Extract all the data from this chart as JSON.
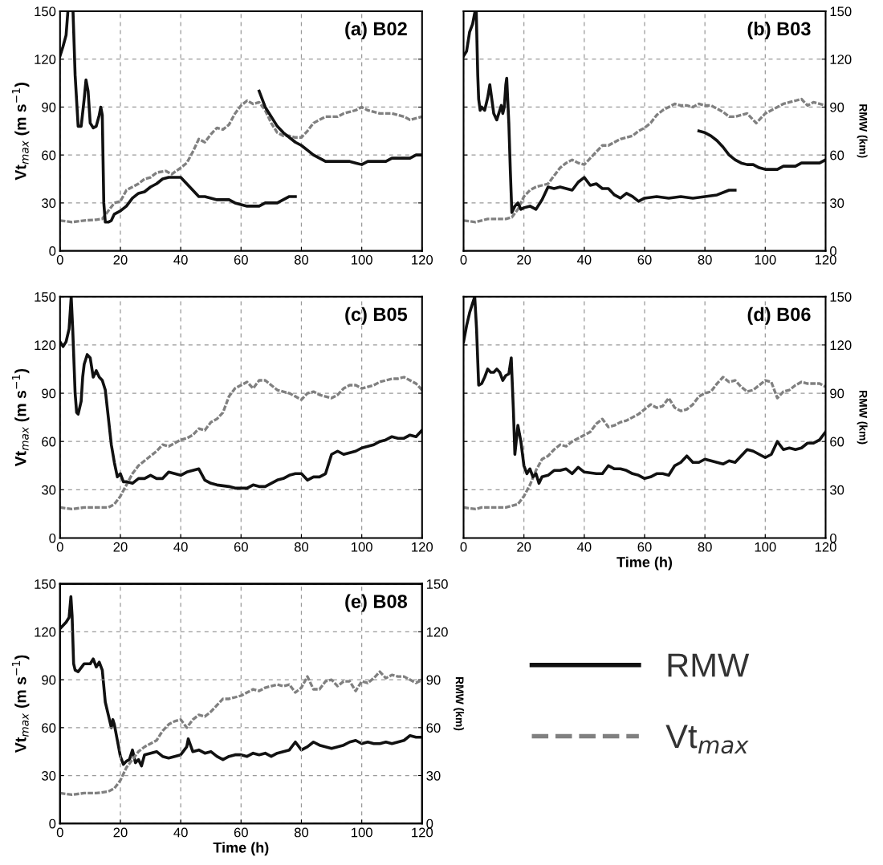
{
  "chart_data": [
    {
      "type": "line",
      "title": "(a) B02",
      "ylabel": "Vt$_{max}$ (m s$^{−1}$)",
      "xlim": [
        0,
        120
      ],
      "xticks": [
        0,
        20,
        40,
        60,
        80,
        100,
        120
      ],
      "ylim": [
        0,
        150
      ],
      "yticks": [
        0,
        30,
        60,
        90,
        120,
        150
      ],
      "grid": true,
      "series": [
        {
          "axis": "y",
          "color": "#808080",
          "line_style": "dashed",
          "x": [
            0,
            4,
            8,
            12,
            14,
            16,
            18,
            20,
            22,
            24,
            26,
            28,
            30,
            32,
            35,
            37,
            40,
            42,
            44,
            46,
            48,
            50,
            52,
            54,
            56,
            58,
            60,
            62,
            64,
            66,
            68,
            70,
            72,
            74,
            76,
            78,
            80,
            82,
            84,
            86,
            88,
            90,
            92,
            94,
            96,
            98,
            100,
            102,
            104,
            106,
            108,
            110,
            112,
            114,
            116,
            118,
            120
          ],
          "values": [
            19,
            18,
            19,
            19.5,
            20,
            25,
            30,
            31,
            38,
            40,
            42,
            45,
            46,
            49,
            50,
            48,
            52,
            55,
            62,
            70,
            68,
            73,
            77,
            76,
            79,
            86,
            91,
            94,
            92,
            93,
            88,
            80,
            74,
            72,
            72,
            71,
            71,
            75,
            80,
            82,
            84,
            84,
            84,
            86,
            87,
            88,
            90,
            88,
            87,
            86,
            86,
            86,
            85,
            84,
            82,
            83,
            84
          ]
        },
        {
          "axis": "y",
          "color": "#111111",
          "line_style": "solid",
          "x": [
            0,
            1,
            2,
            2.6,
            3.5,
            4.3,
            5,
            6,
            7,
            8,
            8.6,
            9.3,
            10,
            11,
            12,
            13,
            13.5,
            14,
            14.5,
            15,
            16,
            17,
            18,
            20,
            22,
            24,
            26,
            28,
            30,
            32,
            34,
            36,
            38,
            40,
            42,
            44,
            46,
            48,
            50,
            52,
            56,
            58,
            60,
            62,
            66,
            68,
            72,
            74,
            76,
            78
          ],
          "values": [
            122,
            128,
            135,
            150,
            null,
            150,
            110,
            78,
            78,
            95,
            107,
            100,
            80,
            77,
            78,
            85,
            90,
            85,
            30,
            18,
            18,
            19,
            23,
            25,
            28,
            33,
            36,
            37,
            40,
            42,
            45,
            46,
            46,
            46,
            42,
            38,
            34,
            34,
            33,
            32,
            32,
            30,
            29,
            28,
            28,
            30,
            30,
            32,
            34,
            34
          ]
        },
        {
          "axis": "y",
          "color": "#111111",
          "line_style": "solid",
          "x": [
            66,
            68,
            70,
            72,
            74,
            76,
            78,
            80,
            82,
            84,
            86,
            88,
            96,
            98,
            100,
            102,
            108,
            110,
            116,
            118,
            120
          ],
          "values": [
            100,
            90,
            84,
            78,
            74,
            71,
            68,
            66,
            63,
            60,
            58,
            56,
            56,
            55,
            54,
            56,
            56,
            58,
            58,
            60,
            60
          ]
        }
      ]
    },
    {
      "type": "line",
      "title": "(b) B03",
      "y2label": "RMW (km)",
      "xlim": [
        0,
        120
      ],
      "xticks": [
        0,
        20,
        40,
        60,
        80,
        100,
        120
      ],
      "y2lim": [
        0,
        150
      ],
      "y2ticks": [
        0,
        30,
        60,
        90,
        120,
        150
      ],
      "grid": true,
      "series": [
        {
          "axis": "y2",
          "color": "#808080",
          "line_style": "dashed",
          "x": [
            0,
            4,
            6,
            8,
            14,
            16,
            18,
            20,
            22,
            24,
            26,
            28,
            30,
            32,
            34,
            36,
            38,
            40,
            42,
            44,
            46,
            48,
            50,
            52,
            54,
            56,
            58,
            60,
            62,
            64,
            66,
            68,
            70,
            72,
            74,
            76,
            78,
            80,
            82,
            84,
            86,
            88,
            90,
            92,
            94,
            97,
            100,
            102,
            104,
            106,
            108,
            110,
            112,
            114,
            116,
            118,
            120
          ],
          "values": [
            19,
            18,
            19,
            20,
            20,
            21,
            26,
            34,
            38,
            40,
            41,
            42,
            47,
            52,
            55,
            57,
            55,
            54,
            58,
            62,
            66,
            66,
            68,
            70,
            71,
            72,
            75,
            77,
            80,
            85,
            88,
            90,
            92,
            91,
            91,
            90,
            92,
            91,
            91,
            89,
            87,
            84,
            84,
            85,
            86,
            80,
            86,
            88,
            90,
            92,
            93,
            94,
            95,
            91,
            93,
            92,
            91
          ]
        },
        {
          "axis": "y2",
          "color": "#111111",
          "line_style": "solid",
          "x": [
            0,
            1,
            2,
            3,
            3.8,
            4,
            4.2,
            4.7,
            5,
            5.5,
            6,
            7,
            8,
            8.7,
            9.5,
            10,
            11,
            12,
            12.5,
            13,
            13.5,
            14,
            14.3,
            15,
            15.5,
            16,
            17,
            18,
            19,
            20,
            22,
            24,
            26,
            28,
            30,
            32,
            34,
            36,
            38,
            40,
            42,
            44,
            46,
            48,
            50,
            52,
            54,
            56,
            58,
            60,
            64,
            68,
            72,
            76,
            80,
            84,
            88,
            90
          ],
          "values": [
            122,
            125,
            137,
            142,
            150,
            null,
            150,
            110,
            95,
            88,
            90,
            88,
            96,
            104,
            93,
            86,
            82,
            88,
            91,
            86,
            90,
            104,
            108,
            80,
            50,
            24,
            28,
            30,
            26,
            27,
            28,
            26,
            32,
            40,
            39,
            40,
            39,
            38,
            43,
            46,
            41,
            42,
            39,
            39,
            35,
            33,
            36,
            34,
            31,
            33,
            34,
            33,
            34,
            33,
            34,
            35,
            38,
            38
          ]
        },
        {
          "axis": "y2",
          "color": "#111111",
          "line_style": "solid",
          "x": [
            78,
            80,
            82,
            84,
            86,
            88,
            90,
            92,
            94,
            96,
            98,
            100,
            104,
            106,
            110,
            112,
            118,
            120
          ],
          "values": [
            75,
            74,
            72,
            69,
            65,
            60,
            57,
            55,
            54,
            54,
            52,
            51,
            51,
            53,
            53,
            55,
            55,
            57
          ]
        }
      ]
    },
    {
      "type": "line",
      "title": "(c) B05",
      "ylabel": "Vt$_{max}$ (m s$^{−1}$)",
      "xlim": [
        0,
        120
      ],
      "xticks": [
        0,
        20,
        40,
        60,
        80,
        100,
        120
      ],
      "ylim": [
        0,
        150
      ],
      "yticks": [
        0,
        30,
        60,
        90,
        120,
        150
      ],
      "grid": true,
      "series": [
        {
          "axis": "y",
          "color": "#808080",
          "line_style": "dashed",
          "x": [
            0,
            4,
            8,
            12,
            16,
            18,
            20,
            22,
            24,
            26,
            28,
            30,
            32,
            34,
            36,
            38,
            40,
            42,
            44,
            46,
            48,
            50,
            52,
            54,
            56,
            58,
            60,
            62,
            64,
            66,
            68,
            70,
            72,
            74,
            76,
            78,
            80,
            82,
            84,
            86,
            88,
            90,
            92,
            94,
            96,
            98,
            100,
            102,
            104,
            106,
            108,
            110,
            112,
            114,
            116,
            118,
            120
          ],
          "values": [
            19,
            18,
            19,
            19,
            19,
            21,
            26,
            33,
            40,
            45,
            48,
            51,
            54,
            58,
            57,
            59,
            61,
            62,
            64,
            68,
            67,
            72,
            74,
            78,
            88,
            93,
            95,
            97,
            93,
            98,
            98,
            95,
            92,
            91,
            90,
            88,
            86,
            90,
            91,
            89,
            88,
            87,
            89,
            93,
            95,
            95,
            93,
            94,
            95,
            97,
            98,
            99,
            99,
            100,
            98,
            96,
            92
          ]
        },
        {
          "axis": "y",
          "color": "#111111",
          "line_style": "solid",
          "x": [
            0,
            1,
            2,
            3,
            3.7,
            4.2,
            5,
            5.5,
            6,
            7,
            7.5,
            8,
            9,
            10,
            11,
            12,
            13,
            14,
            15,
            16,
            17,
            18,
            19,
            20,
            21,
            22,
            24,
            26,
            28,
            30,
            32,
            34,
            36,
            38,
            40,
            42,
            44,
            46,
            48,
            50,
            52,
            56,
            58,
            60,
            62,
            64,
            66,
            68,
            70,
            72,
            74,
            76,
            78,
            80,
            82,
            84,
            86,
            88,
            90,
            92,
            94,
            96,
            98,
            100,
            102,
            104,
            106,
            108,
            110,
            112,
            114,
            116,
            118,
            120
          ],
          "values": [
            122,
            119,
            122,
            130,
            150,
            130,
            90,
            78,
            77,
            85,
            100,
            108,
            114,
            112,
            100,
            104,
            100,
            98,
            92,
            75,
            58,
            47,
            38,
            40,
            35,
            35,
            34,
            37,
            37,
            39,
            37,
            37,
            41,
            40,
            39,
            41,
            42,
            43,
            36,
            34,
            33,
            32,
            31,
            31,
            31,
            33,
            32,
            32,
            34,
            36,
            37,
            39,
            40,
            40,
            36,
            38,
            38,
            40,
            52,
            54,
            52,
            53,
            54,
            56,
            57,
            58,
            60,
            61,
            63,
            62,
            62,
            64,
            63,
            67
          ]
        }
      ]
    },
    {
      "type": "line",
      "title": "(d) B06",
      "xlabel": "Time (h)",
      "y2label": "RMW (km)",
      "xlim": [
        0,
        120
      ],
      "xticks": [
        0,
        20,
        40,
        60,
        80,
        100,
        120
      ],
      "y2lim": [
        0,
        150
      ],
      "y2ticks": [
        0,
        30,
        60,
        90,
        120,
        150
      ],
      "grid": true,
      "series": [
        {
          "axis": "y2",
          "color": "#808080",
          "line_style": "dashed",
          "x": [
            0,
            4,
            6,
            10,
            14,
            16,
            18,
            20,
            22,
            24,
            26,
            28,
            30,
            32,
            34,
            36,
            38,
            40,
            42,
            44,
            46,
            48,
            50,
            52,
            54,
            56,
            58,
            60,
            62,
            64,
            66,
            68,
            70,
            72,
            74,
            76,
            78,
            80,
            82,
            84,
            86,
            88,
            90,
            92,
            94,
            96,
            98,
            100,
            102,
            104,
            106,
            108,
            110,
            112,
            114,
            116,
            118,
            120
          ],
          "values": [
            19,
            18,
            19,
            19,
            19,
            20,
            21,
            26,
            33,
            42,
            49,
            51,
            55,
            58,
            57,
            60,
            62,
            64,
            66,
            71,
            74,
            69,
            70,
            72,
            73,
            75,
            77,
            80,
            83,
            81,
            82,
            87,
            81,
            79,
            80,
            83,
            88,
            90,
            91,
            96,
            100,
            97,
            98,
            94,
            91,
            92,
            95,
            98,
            97,
            87,
            91,
            92,
            95,
            97,
            96,
            96,
            96,
            94
          ]
        },
        {
          "axis": "y2",
          "color": "#111111",
          "line_style": "solid",
          "x": [
            0,
            1,
            2,
            3,
            3.7,
            4.3,
            5,
            6,
            7,
            8,
            9,
            10,
            11,
            12,
            13,
            14,
            15,
            15.8,
            16.5,
            17,
            18,
            19,
            20,
            21,
            22,
            23,
            24,
            25,
            26,
            28,
            30,
            32,
            34,
            36,
            38,
            40,
            44,
            46,
            48,
            50,
            52,
            54,
            56,
            58,
            60,
            62,
            64,
            66,
            68,
            70,
            72,
            74,
            76,
            78,
            80,
            82,
            84,
            86,
            88,
            90,
            92,
            94,
            96,
            98,
            100,
            102,
            104,
            106,
            108,
            110,
            112,
            114,
            116,
            118,
            120
          ],
          "values": [
            122,
            132,
            140,
            146,
            150,
            130,
            95,
            96,
            100,
            105,
            103,
            103,
            105,
            103,
            98,
            101,
            102,
            112,
            80,
            52,
            70,
            60,
            45,
            40,
            43,
            38,
            40,
            34,
            38,
            39,
            42,
            42,
            43,
            40,
            44,
            41,
            40,
            40,
            45,
            43,
            43,
            42,
            40,
            39,
            37,
            38,
            40,
            40,
            39,
            45,
            47,
            51,
            47,
            47,
            49,
            48,
            47,
            46,
            48,
            47,
            51,
            55,
            54,
            52,
            50,
            52,
            60,
            55,
            56,
            55,
            56,
            59,
            59,
            61,
            66
          ]
        }
      ]
    },
    {
      "type": "line",
      "title": "(e) B08",
      "xlabel": "Time (h)",
      "ylabel": "Vt$_{max}$ (m s$^{−1}$)",
      "y2label": "RMW (km)",
      "xlim": [
        0,
        120
      ],
      "xticks": [
        0,
        20,
        40,
        60,
        80,
        100,
        120
      ],
      "ylim": [
        0,
        150
      ],
      "yticks": [
        0,
        30,
        60,
        90,
        120,
        150
      ],
      "y2lim": [
        0,
        150
      ],
      "y2ticks": [
        0,
        30,
        60,
        90,
        120,
        150
      ],
      "grid": true,
      "legend": "right",
      "series": [
        {
          "name": "Vt$_{max}$",
          "axis": "y",
          "color": "#808080",
          "line_style": "dashed",
          "x": [
            0,
            4,
            8,
            12,
            16,
            18,
            20,
            22,
            24,
            26,
            28,
            30,
            32,
            34,
            36,
            38,
            40,
            42,
            44,
            46,
            48,
            50,
            52,
            54,
            56,
            58,
            60,
            62,
            64,
            66,
            68,
            70,
            72,
            74,
            76,
            78,
            80,
            82,
            84,
            86,
            88,
            90,
            92,
            94,
            96,
            98,
            100,
            102,
            104,
            106,
            108,
            110,
            112,
            114,
            116,
            118,
            120
          ],
          "values": [
            19,
            18,
            19,
            19,
            20,
            22,
            27,
            35,
            40,
            45,
            48,
            50,
            52,
            58,
            62,
            64,
            65,
            60,
            65,
            68,
            67,
            70,
            74,
            78,
            78,
            79,
            80,
            82,
            84,
            83,
            85,
            86,
            87,
            86,
            87,
            82,
            85,
            92,
            84,
            84,
            89,
            90,
            86,
            89,
            89,
            83,
            89,
            88,
            91,
            95,
            91,
            93,
            92,
            92,
            90,
            88,
            90
          ]
        },
        {
          "name": "RMW",
          "axis": "y2",
          "color": "#111111",
          "line_style": "solid",
          "x": [
            0,
            2,
            3,
            3.6,
            4,
            4.5,
            5,
            6,
            8,
            10,
            11,
            12,
            13,
            14,
            15,
            16,
            17,
            17.5,
            18,
            19,
            20,
            21,
            22,
            23,
            24,
            25,
            26,
            27,
            28,
            30,
            32,
            34,
            36,
            38,
            40,
            42,
            42.5,
            44,
            46,
            48,
            50,
            52,
            54,
            56,
            58,
            60,
            62,
            64,
            66,
            68,
            70,
            72,
            74,
            76,
            78,
            80,
            82,
            84,
            86,
            88,
            90,
            92,
            94,
            96,
            98,
            100,
            102,
            104,
            106,
            108,
            110,
            112,
            114,
            116,
            118,
            120
          ],
          "values": [
            122,
            126,
            129,
            142,
            130,
            100,
            96,
            95,
            100,
            100,
            103,
            98,
            101,
            96,
            76,
            68,
            60,
            65,
            62,
            52,
            42,
            37,
            39,
            40,
            46,
            38,
            40,
            36,
            43,
            44,
            45,
            42,
            41,
            42,
            43,
            48,
            53,
            45,
            46,
            44,
            45,
            42,
            40,
            42,
            43,
            43,
            42,
            44,
            43,
            44,
            42,
            44,
            45,
            46,
            51,
            46,
            48,
            51,
            49,
            48,
            47,
            48,
            49,
            51,
            52,
            50,
            51,
            50,
            50,
            51,
            50,
            51,
            52,
            55,
            54,
            54
          ]
        }
      ]
    }
  ]
}
